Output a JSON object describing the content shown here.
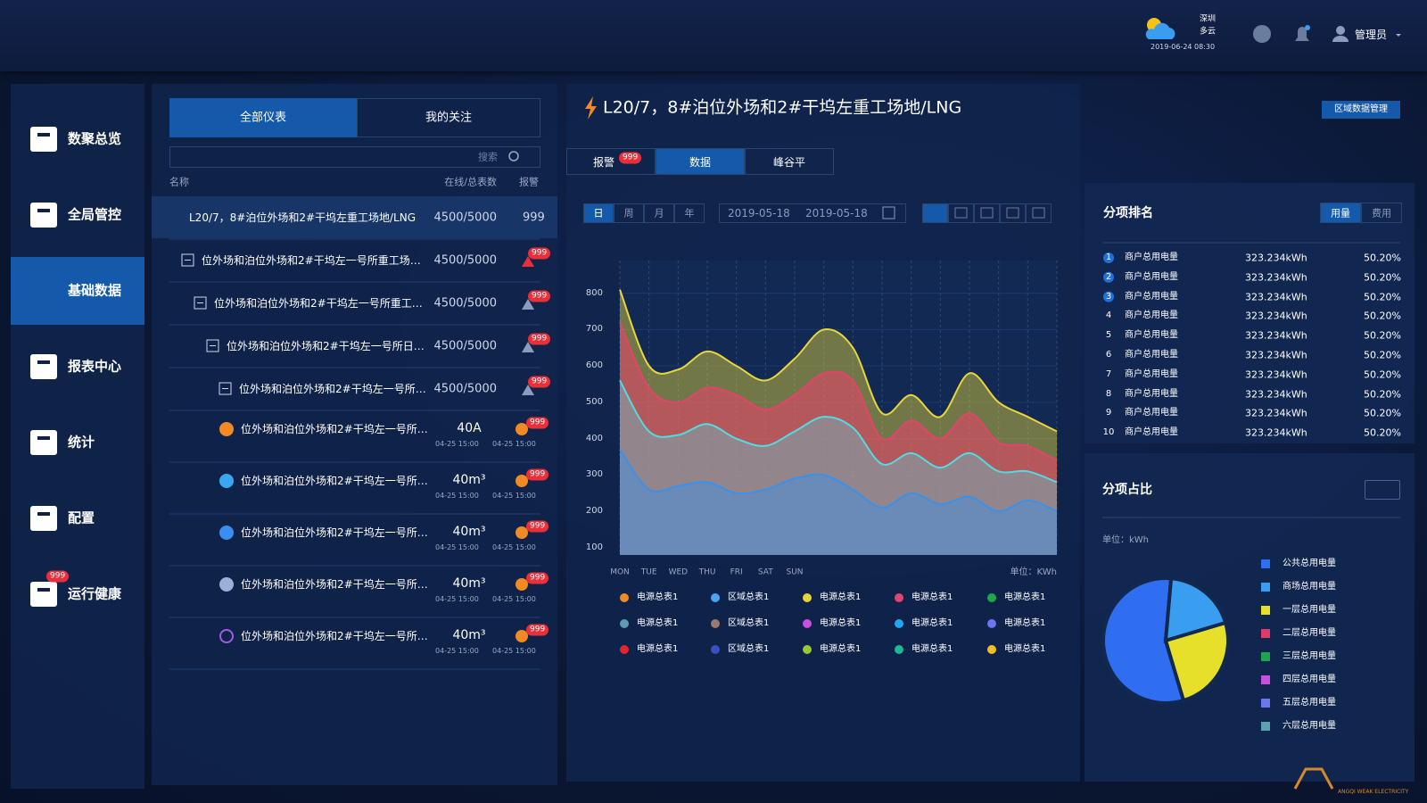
{
  "header": {
    "city": "深圳",
    "weather": "多云",
    "datetime": "2019-06-24 08:30",
    "user": "管理员"
  },
  "sidebar": {
    "items": [
      {
        "label": "数聚总览"
      },
      {
        "label": "全局管控"
      },
      {
        "label": "基础数据"
      },
      {
        "label": "报表中心"
      },
      {
        "label": "统计"
      },
      {
        "label": "配置"
      },
      {
        "label": "运行健康",
        "badge": "999"
      }
    ]
  },
  "meters": {
    "tabs": [
      "全部仪表",
      "我的关注"
    ],
    "search": "搜索",
    "columns": [
      "名称",
      "在线/总表数",
      "报警"
    ],
    "groups": [
      {
        "name": "L20/7，8#泊位外场和2#干坞左重工场地/LNG",
        "count": "4500/5000",
        "alarm": "999"
      },
      {
        "name": "位外场和泊位外场和2#干坞左一号所重工场…",
        "count": "4500/5000",
        "alarm": "999"
      },
      {
        "name": "位外场和泊位外场和2#干坞左一号所重工…",
        "count": "4500/5000",
        "alarm": "999"
      },
      {
        "name": "位外场和泊位外场和2#干坞左一号所日…",
        "count": "4500/5000",
        "alarm": "999"
      },
      {
        "name": "位外场和泊位外场和2#干坞左一号所…",
        "count": "4500/5000",
        "alarm": "999"
      }
    ],
    "items": [
      {
        "name": "位外场和泊位外场和2#干坞左一号所…",
        "value": "40A",
        "time1": "04-25 15:00",
        "time2": "04-25 15:00",
        "alarm": "999"
      },
      {
        "name": "位外场和泊位外场和2#干坞左一号所…",
        "value": "40m³",
        "time1": "04-25 15:00",
        "time2": "04-25 15:00",
        "alarm": "999"
      },
      {
        "name": "位外场和泊位外场和2#干坞左一号所…",
        "value": "40m³",
        "time1": "04-25 15:00",
        "time2": "04-25 15:00",
        "alarm": "999"
      },
      {
        "name": "位外场和泊位外场和2#干坞左一号所…",
        "value": "40m³",
        "time1": "04-25 15:00",
        "time2": "04-25 15:00",
        "alarm": "999"
      },
      {
        "name": "位外场和泊位外场和2#干坞左一号所…",
        "value": "40m³",
        "time1": "04-25 15:00",
        "time2": "04-25 15:00",
        "alarm": "999"
      }
    ]
  },
  "detail": {
    "title": "L20/7，8#泊位外场和2#干坞左重工场地/LNG",
    "button": "区域数据管理",
    "tabs": [
      {
        "label": "报警",
        "badge": "999"
      },
      {
        "label": "数据"
      },
      {
        "label": "峰谷平"
      }
    ],
    "periods": [
      "日",
      "周",
      "月",
      "年"
    ],
    "date_from": "2019-05-18",
    "date_to": "2019-05-18"
  },
  "ranking": {
    "title": "分项排名",
    "toggles": [
      "用量",
      "费用"
    ],
    "rows": [
      {
        "rank": 1,
        "name": "商户总用电量",
        "value": "323.234kWh",
        "share": "50.20%"
      },
      {
        "rank": 2,
        "name": "商户总用电量",
        "value": "323.234kWh",
        "share": "50.20%"
      },
      {
        "rank": 3,
        "name": "商户总用电量",
        "value": "323.234kWh",
        "share": "50.20%"
      },
      {
        "rank": 4,
        "name": "商户总用电量",
        "value": "323.234kWh",
        "share": "50.20%"
      },
      {
        "rank": 5,
        "name": "商户总用电量",
        "value": "323.234kWh",
        "share": "50.20%"
      },
      {
        "rank": 6,
        "name": "商户总用电量",
        "value": "323.234kWh",
        "share": "50.20%"
      },
      {
        "rank": 7,
        "name": "商户总用电量",
        "value": "323.234kWh",
        "share": "50.20%"
      },
      {
        "rank": 8,
        "name": "商户总用电量",
        "value": "323.234kWh",
        "share": "50.20%"
      },
      {
        "rank": 9,
        "name": "商户总用电量",
        "value": "323.234kWh",
        "share": "50.20%"
      },
      {
        "rank": 10,
        "name": "商户总用电量",
        "value": "323.234kWh",
        "share": "50.20%"
      }
    ]
  },
  "chart_data": [
    {
      "type": "area",
      "unit_label": "单位：KWh",
      "categories": [
        "MON",
        "TUE",
        "WED",
        "THU",
        "FRI",
        "SAT",
        "SUN",
        null,
        null,
        null,
        null,
        null,
        null,
        null,
        null,
        null
      ],
      "series": [
        {
          "color": "#e8d63a",
          "values": [
            810,
            600,
            590,
            640,
            600,
            560,
            620,
            700,
            650,
            470,
            520,
            460,
            580,
            500,
            460,
            420
          ]
        },
        {
          "color": "#e2456a",
          "values": [
            720,
            540,
            500,
            540,
            520,
            480,
            520,
            580,
            560,
            400,
            450,
            400,
            470,
            390,
            380,
            340
          ]
        },
        {
          "color": "#4fdde4",
          "values": [
            560,
            420,
            410,
            440,
            400,
            380,
            420,
            460,
            430,
            330,
            360,
            320,
            360,
            310,
            310,
            280
          ]
        },
        {
          "color": "#3a90ea",
          "values": [
            370,
            260,
            270,
            280,
            250,
            260,
            290,
            300,
            260,
            210,
            250,
            220,
            240,
            200,
            230,
            200
          ]
        }
      ],
      "ylim": [
        80,
        890
      ],
      "yticks": [
        100,
        200,
        300,
        400,
        500,
        600,
        700,
        800
      ],
      "grid": true,
      "legend": [
        {
          "name": "电源总表1",
          "color": "#f08a24"
        },
        {
          "name": "区域总表1",
          "color": "#4da3f0"
        },
        {
          "name": "电源总表1",
          "color": "#e6d23a"
        },
        {
          "name": "电源总表1",
          "color": "#e0456f"
        },
        {
          "name": "电源总表1",
          "color": "#1fa64a"
        },
        {
          "name": "电源总表1",
          "color": "#5f9ab0"
        },
        {
          "name": "区域总表1",
          "color": "#9a7a6a"
        },
        {
          "name": "电源总表1",
          "color": "#c94fe0"
        },
        {
          "name": "电源总表1",
          "color": "#1fa8f0"
        },
        {
          "name": "电源总表1",
          "color": "#6a78f0"
        },
        {
          "name": "电源总表1",
          "color": "#e0262e"
        },
        {
          "name": "区域总表1",
          "color": "#3a4fc0"
        },
        {
          "name": "电源总表1",
          "color": "#9ac63a"
        },
        {
          "name": "电源总表1",
          "color": "#1fb890"
        },
        {
          "name": "电源总表1",
          "color": "#f0c020"
        }
      ]
    },
    {
      "type": "pie",
      "title": "分项占比",
      "unit_label": "单位：kWh",
      "categories": [
        "公共总用电量",
        "商场总用电量",
        "一层总用电量",
        "二层总用电量",
        "三层总用电量",
        "四层总用电量",
        "五层总用电量",
        "六层总用电量"
      ],
      "colors": [
        "#2f6ef0",
        "#3a9ef0",
        "#e6e02a",
        "#e03a6a",
        "#1fa64a",
        "#c94fe0",
        "#6a78f0",
        "#5fa0b0"
      ],
      "values": [
        56,
        19,
        25,
        0,
        0,
        0,
        0,
        0
      ]
    }
  ],
  "footer": {
    "brand": "ANGQI WEAK ELECTRICITY"
  }
}
